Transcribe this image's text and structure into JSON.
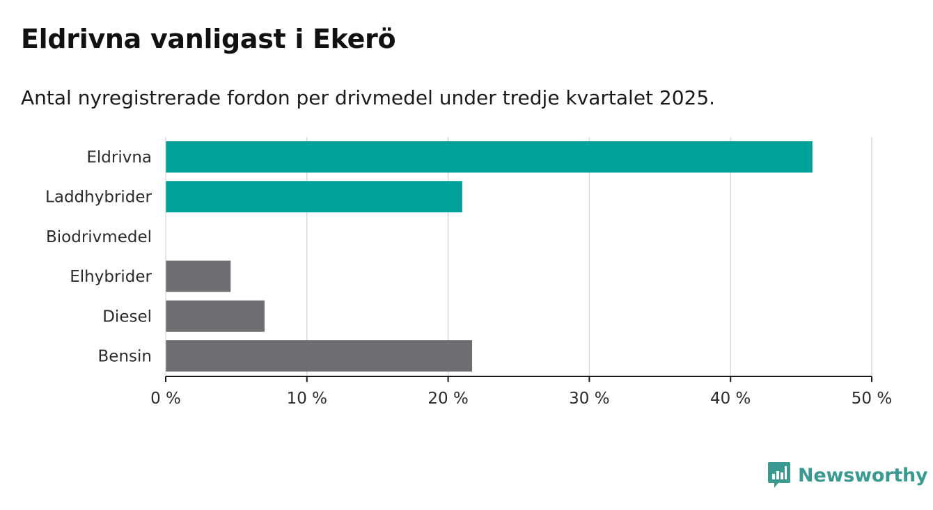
{
  "header": {
    "title": "Eldrivna vanligast i Ekerö",
    "subtitle": "Antal nyregistrerade fordon per drivmedel under tredje kvartalet 2025."
  },
  "chart_data": {
    "type": "bar",
    "orientation": "horizontal",
    "categories": [
      "Eldrivna",
      "Laddhybrider",
      "Biodrivmedel",
      "Elhybrider",
      "Diesel",
      "Bensin"
    ],
    "values": [
      45.8,
      21.0,
      0,
      4.6,
      7.0,
      21.7
    ],
    "colors": [
      "#00a19a",
      "#00a19a",
      "#00a19a",
      "#6e6d72",
      "#6e6d72",
      "#6e6d72"
    ],
    "xlim": [
      0,
      50
    ],
    "xticks": [
      0,
      10,
      20,
      30,
      40,
      50
    ],
    "xtick_labels": [
      "0 %",
      "10 %",
      "20 %",
      "30 %",
      "40 %",
      "50 %"
    ],
    "grid": "vertical",
    "xlabel": "",
    "ylabel": ""
  },
  "branding": {
    "logo_text": "Newsworthy",
    "logo_color": "#3a9a92"
  }
}
